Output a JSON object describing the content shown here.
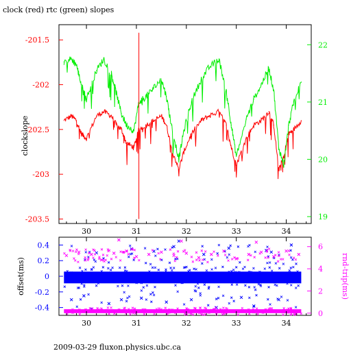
{
  "title": "clock (red) rtc (green) slopes",
  "footer": "2009-03-29 fluxon.physics.ubc.ca",
  "colors": {
    "red": "#ff0000",
    "green": "#00ee00",
    "blue": "#0000ff",
    "magenta": "#ff00ff",
    "axis": "#000000"
  },
  "chart_data": [
    {
      "type": "line",
      "ylabel": "clockslope",
      "y2label": "",
      "xlim": [
        29.45,
        34.5
      ],
      "ylim": [
        -203.55,
        -201.33
      ],
      "y2lim": [
        18.88,
        22.35
      ],
      "xticks": [
        30,
        31,
        32,
        33,
        34
      ],
      "yticks": [
        -201.5,
        -202,
        -202.5,
        -203,
        -203.5
      ],
      "ytick_labels": [
        "-201.5",
        "-202",
        "-202.5",
        "-203",
        "-203.5"
      ],
      "y2ticks": [
        19,
        20,
        21,
        22
      ],
      "y2tick_labels": [
        "19",
        "20",
        "21",
        "22"
      ],
      "grid": false,
      "series": [
        {
          "color": "red",
          "axis": "left",
          "x": [
            29.55,
            29.7,
            29.8,
            29.9,
            30.0,
            30.2,
            30.35,
            30.5,
            30.6,
            30.7,
            30.8,
            30.95,
            31.05,
            31.2,
            31.35,
            31.5,
            31.6,
            31.7,
            31.85,
            31.95,
            32.1,
            32.3,
            32.45,
            32.65,
            32.8,
            32.9,
            33.0,
            33.2,
            33.35,
            33.5,
            33.65,
            33.75,
            33.85,
            33.95,
            34.05,
            34.15,
            34.3
          ],
          "y": [
            -202.4,
            -202.35,
            -202.4,
            -202.55,
            -202.6,
            -202.35,
            -202.3,
            -202.35,
            -202.45,
            -202.5,
            -202.65,
            -202.7,
            -202.5,
            -202.45,
            -202.4,
            -202.35,
            -202.45,
            -202.7,
            -202.95,
            -202.75,
            -202.55,
            -202.4,
            -202.35,
            -202.3,
            -202.45,
            -202.7,
            -202.9,
            -202.6,
            -202.45,
            -202.4,
            -202.3,
            -202.45,
            -202.95,
            -202.8,
            -202.55,
            -202.5,
            -202.4
          ]
        },
        {
          "color": "green",
          "axis": "right",
          "x": [
            29.55,
            29.7,
            29.8,
            29.9,
            30.0,
            30.2,
            30.35,
            30.5,
            30.6,
            30.7,
            30.8,
            30.95,
            31.05,
            31.2,
            31.35,
            31.5,
            31.6,
            31.7,
            31.85,
            31.95,
            32.1,
            32.3,
            32.45,
            32.65,
            32.8,
            32.9,
            33.0,
            33.2,
            33.35,
            33.5,
            33.65,
            33.75,
            33.85,
            33.95,
            34.05,
            34.15,
            34.3
          ],
          "y": [
            21.7,
            21.75,
            21.65,
            21.3,
            21.05,
            21.55,
            21.75,
            21.5,
            21.15,
            20.8,
            20.6,
            20.5,
            21.0,
            21.1,
            21.25,
            21.4,
            21.1,
            20.6,
            20.0,
            20.5,
            21.0,
            21.4,
            21.6,
            21.75,
            21.2,
            20.6,
            20.05,
            20.7,
            21.05,
            21.3,
            21.6,
            21.2,
            20.2,
            19.9,
            20.6,
            21.0,
            21.35
          ]
        }
      ]
    },
    {
      "type": "scatter",
      "ylabel": "offset(ms)",
      "y2label": "rnd-trip(ms)",
      "xlim": [
        29.45,
        34.5
      ],
      "ylim": [
        -0.5,
        0.5
      ],
      "y2lim": [
        -0.2,
        6.85
      ],
      "xticks": [
        30,
        31,
        32,
        33,
        34
      ],
      "yticks": [
        0.4,
        0.2,
        0,
        -0.2,
        -0.4
      ],
      "ytick_labels": [
        "0.4",
        "0.2",
        "0",
        "-0.2",
        "-0.4"
      ],
      "y2ticks": [
        0,
        2,
        4,
        6
      ],
      "y2tick_labels": [
        "0",
        "2",
        "4",
        "6"
      ],
      "grid": false,
      "series": [
        {
          "color": "blue",
          "axis": "left",
          "band": [
            -0.09,
            0.06
          ],
          "x": [
            29.7,
            29.95,
            30.2,
            30.45,
            30.7,
            30.9,
            31.1,
            31.35,
            31.6,
            31.85,
            32.1,
            32.35,
            32.6,
            32.85,
            33.1,
            33.35,
            33.6,
            33.85,
            34.1,
            30.1,
            31.75,
            33.7
          ],
          "y": [
            -0.3,
            -0.25,
            0.3,
            -0.35,
            -0.3,
            0.35,
            -0.28,
            0.32,
            -0.33,
            0.45,
            -0.3,
            0.28,
            -0.4,
            0.36,
            -0.27,
            -0.38,
            0.33,
            -0.3,
            0.4,
            -0.42,
            0.38,
            0.31
          ]
        },
        {
          "color": "magenta",
          "axis": "right",
          "band": [
            0.0,
            0.35
          ],
          "x": [
            29.6,
            29.85,
            30.1,
            30.3,
            30.55,
            30.8,
            31.0,
            31.25,
            31.5,
            31.75,
            32.0,
            32.25,
            32.5,
            32.75,
            33.0,
            33.25,
            33.5,
            33.75,
            34.0,
            34.25,
            30.65,
            31.9,
            33.4
          ],
          "y": [
            5.2,
            5.5,
            5.3,
            4.8,
            5.4,
            5.6,
            5.1,
            5.3,
            5.5,
            5.2,
            5.4,
            5.0,
            5.3,
            5.6,
            4.9,
            5.3,
            5.5,
            5.1,
            5.6,
            5.3,
            6.6,
            6.5,
            6.4
          ]
        }
      ]
    }
  ]
}
